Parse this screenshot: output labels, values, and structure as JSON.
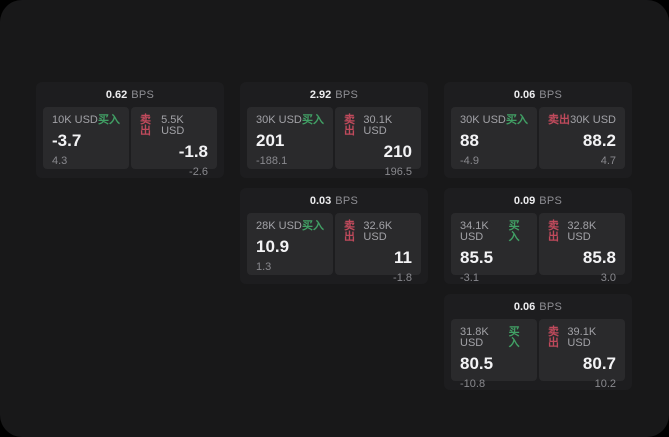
{
  "labels": {
    "unit": "BPS",
    "buy": "买入",
    "sell": "卖出"
  },
  "colors": {
    "buy_green": "#41a065",
    "sell_red": "#c04a5c",
    "card_bg": "#1d1d1f",
    "panel_bg": "#2a2a2c",
    "screen_bg": "#181819"
  },
  "cards": [
    {
      "bps": "0.62",
      "buy": {
        "size": "10K USD",
        "value": "-3.7",
        "sub": "4.3"
      },
      "sell": {
        "size": "5.5K USD",
        "value": "-1.8",
        "sub": "-2.6"
      }
    },
    {
      "bps": "2.92",
      "buy": {
        "size": "30K USD",
        "value": "201",
        "sub": "-188.1"
      },
      "sell": {
        "size": "30.1K USD",
        "value": "210",
        "sub": "196.5"
      }
    },
    {
      "bps": "0.06",
      "buy": {
        "size": "30K USD",
        "value": "88",
        "sub": "-4.9"
      },
      "sell": {
        "size": "30K USD",
        "value": "88.2",
        "sub": "4.7"
      }
    },
    {
      "bps": "0.03",
      "buy": {
        "size": "28K USD",
        "value": "10.9",
        "sub": "1.3"
      },
      "sell": {
        "size": "32.6K USD",
        "value": "11",
        "sub": "-1.8"
      }
    },
    {
      "bps": "0.09",
      "buy": {
        "size": "34.1K USD",
        "value": "85.5",
        "sub": "-3.1"
      },
      "sell": {
        "size": "32.8K USD",
        "value": "85.8",
        "sub": "3.0"
      }
    },
    {
      "bps": "0.06",
      "buy": {
        "size": "31.8K USD",
        "value": "80.5",
        "sub": "-10.8"
      },
      "sell": {
        "size": "39.1K USD",
        "value": "80.7",
        "sub": "10.2"
      }
    }
  ]
}
